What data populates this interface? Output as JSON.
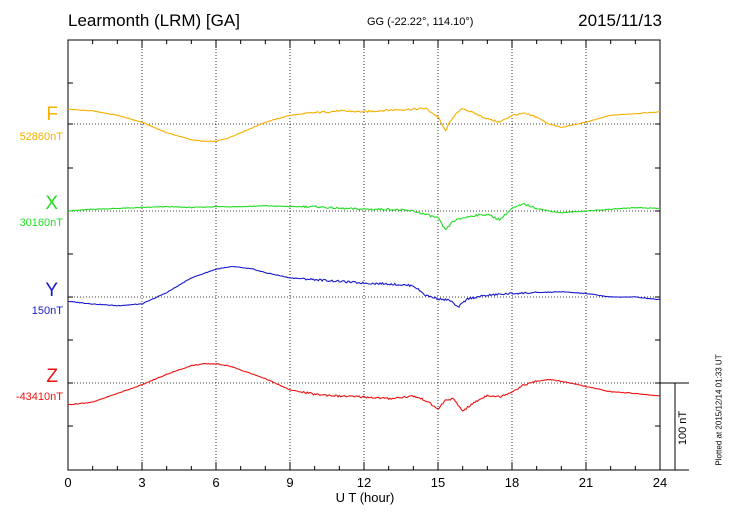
{
  "header": {
    "station": "Learmonth (LRM)  [GA]",
    "coords": "GG (-22.22°, 114.10°)",
    "date": "2015/11/13"
  },
  "plotted_note": "Plotted at 2015/12/14 01:33 UT",
  "scale_label": "100 nT",
  "chart_data": {
    "type": "line",
    "xlabel": "U T (hour)",
    "xlim": [
      0,
      24
    ],
    "xticks": [
      "0",
      "3",
      "6",
      "9",
      "12",
      "15",
      "18",
      "21",
      "24"
    ],
    "scale_bar_nT": 100,
    "grid": true,
    "series": [
      {
        "name": "F",
        "baseline_label": "52860nT",
        "baseline": 52860,
        "color": "#f5b000",
        "x": [
          0,
          1,
          2,
          3,
          4,
          5,
          5.5,
          6,
          6.5,
          7,
          8,
          9,
          10,
          11,
          12,
          13,
          14,
          14.5,
          15,
          15.3,
          15.6,
          16,
          16.5,
          17,
          17.5,
          18,
          18.5,
          19,
          19.5,
          20,
          21,
          22,
          23,
          24
        ],
        "y": [
          52877,
          52875,
          52870,
          52862,
          52850,
          52842,
          52840,
          52840,
          52844,
          52850,
          52862,
          52870,
          52873,
          52875,
          52874,
          52876,
          52877,
          52878,
          52868,
          52852,
          52868,
          52878,
          52872,
          52866,
          52862,
          52870,
          52872,
          52868,
          52860,
          52856,
          52862,
          52870,
          52872,
          52874
        ]
      },
      {
        "name": "X",
        "baseline_label": "30160nT",
        "baseline": 30160,
        "color": "#22dd22",
        "x": [
          0,
          1,
          2,
          3,
          4,
          5,
          6,
          7,
          8,
          9,
          10,
          11,
          12,
          13,
          14,
          14.5,
          15,
          15.3,
          15.6,
          16,
          16.5,
          17,
          17.5,
          18,
          18.5,
          19,
          19.5,
          20,
          21,
          22,
          23,
          24
        ],
        "y": [
          30160,
          30162,
          30163,
          30164,
          30165,
          30164,
          30165,
          30165,
          30166,
          30165,
          30165,
          30163,
          30162,
          30162,
          30160,
          30156,
          30152,
          30138,
          30148,
          30152,
          30155,
          30156,
          30150,
          30163,
          30168,
          30163,
          30160,
          30158,
          30160,
          30162,
          30164,
          30163
        ]
      },
      {
        "name": "Y",
        "baseline_label": "150nT",
        "baseline": 150,
        "color": "#1a1acc",
        "x": [
          0,
          1,
          2,
          3,
          4,
          5,
          6,
          6.7,
          7.5,
          8,
          9,
          10,
          11,
          12,
          13,
          14,
          14.5,
          15,
          15.5,
          15.8,
          16.2,
          17,
          18,
          19,
          20,
          21,
          22,
          23,
          24
        ],
        "y": [
          145,
          142,
          140,
          142,
          155,
          172,
          182,
          185,
          182,
          178,
          172,
          170,
          168,
          166,
          165,
          163,
          152,
          148,
          146,
          138,
          148,
          152,
          154,
          155,
          156,
          154,
          150,
          150,
          147
        ]
      },
      {
        "name": "Z",
        "baseline_label": "-43410nT",
        "baseline": -43410,
        "color": "#ee1111",
        "x": [
          0,
          1,
          2,
          3,
          4,
          5,
          5.5,
          6,
          6.5,
          7,
          8,
          9,
          10,
          11,
          12,
          13,
          14,
          14.5,
          15,
          15.3,
          15.6,
          16,
          16.5,
          17,
          17.5,
          18,
          18.5,
          19,
          19.5,
          20,
          21,
          22,
          23,
          24
        ],
        "y": [
          -43435,
          -43432,
          -43422,
          -43412,
          -43400,
          -43390,
          -43388,
          -43388,
          -43390,
          -43395,
          -43405,
          -43418,
          -43423,
          -43425,
          -43426,
          -43428,
          -43425,
          -43430,
          -43440,
          -43430,
          -43428,
          -43442,
          -43432,
          -43424,
          -43426,
          -43420,
          -43412,
          -43408,
          -43406,
          -43408,
          -43414,
          -43420,
          -43422,
          -43425
        ]
      }
    ]
  }
}
